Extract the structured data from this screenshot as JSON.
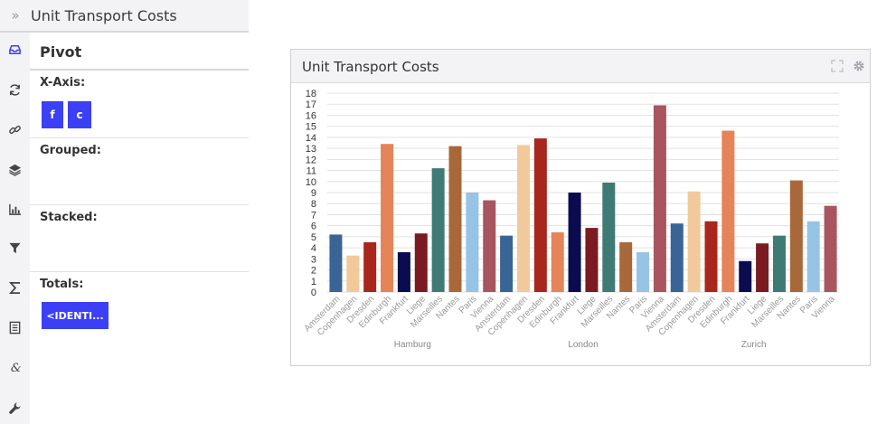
{
  "header": {
    "expand_icon": "chevrons-right-icon",
    "title": "Unit Transport Costs"
  },
  "rail": {
    "items": [
      {
        "name": "inbox-icon",
        "active": true
      },
      {
        "name": "refresh-icon",
        "active": false
      },
      {
        "name": "link-icon",
        "active": false
      },
      {
        "name": "layers-icon",
        "active": false
      },
      {
        "name": "bar-chart-icon",
        "active": false
      },
      {
        "name": "filter-icon",
        "active": false
      },
      {
        "name": "sigma-icon",
        "active": false
      },
      {
        "name": "document-icon",
        "active": false
      },
      {
        "name": "ampersand-icon",
        "active": false
      },
      {
        "name": "wrench-icon",
        "active": false
      }
    ],
    "active_color": "#3b3ff5",
    "icon_color": "#444444"
  },
  "pivot": {
    "title": "Pivot",
    "x_axis_label": "X-Axis:",
    "x_axis_chips": [
      "f",
      "c"
    ],
    "grouped_label": "Grouped:",
    "stacked_label": "Stacked:",
    "totals_label": "Totals:",
    "totals_chips": [
      "<IDENTI..."
    ],
    "chip_color": "#3b3ff5"
  },
  "card": {
    "title": "Unit Transport Costs",
    "expand_icon": "expand-icon",
    "settings_icon": "gear-icon"
  },
  "chart_data": {
    "type": "bar",
    "grid": true,
    "ylim": [
      0,
      18
    ],
    "yticks": [
      0,
      1,
      2,
      3,
      4,
      5,
      6,
      7,
      8,
      9,
      10,
      11,
      12,
      13,
      14,
      15,
      16,
      17,
      18
    ],
    "groups": [
      {
        "name": "Hamburg",
        "categories": [
          "Amsterdam",
          "Copenhagen",
          "Dresden",
          "Edinburgh",
          "Frankfurt",
          "Liege",
          "Marseilles",
          "Nantes",
          "Paris",
          "Vienna"
        ],
        "values": [
          5.2,
          3.3,
          4.5,
          13.4,
          3.6,
          5.3,
          11.2,
          13.2,
          9.0,
          8.3
        ]
      },
      {
        "name": "London",
        "categories": [
          "Amsterdam",
          "Copenhagen",
          "Dresden",
          "Edinburgh",
          "Frankfurt",
          "Liege",
          "Marseilles",
          "Nantes",
          "Paris",
          "Vienna"
        ],
        "values": [
          5.1,
          13.3,
          13.9,
          5.4,
          9.0,
          5.8,
          9.9,
          4.5,
          3.6,
          16.9
        ]
      },
      {
        "name": "Zurich",
        "categories": [
          "Amsterdam",
          "Copenhagen",
          "Dresden",
          "Edinburgh",
          "Frankfurt",
          "Liege",
          "Marseilles",
          "Nantes",
          "Paris",
          "Vienna"
        ],
        "values": [
          6.2,
          9.1,
          6.4,
          14.6,
          2.8,
          4.4,
          5.1,
          10.1,
          6.4,
          7.8
        ]
      }
    ],
    "colors": [
      "#3a6495",
      "#f2c99a",
      "#a8261b",
      "#e58458",
      "#0b0c4f",
      "#7a1b22",
      "#3f7a75",
      "#a8683a",
      "#97c3e5",
      "#a85560"
    ]
  }
}
